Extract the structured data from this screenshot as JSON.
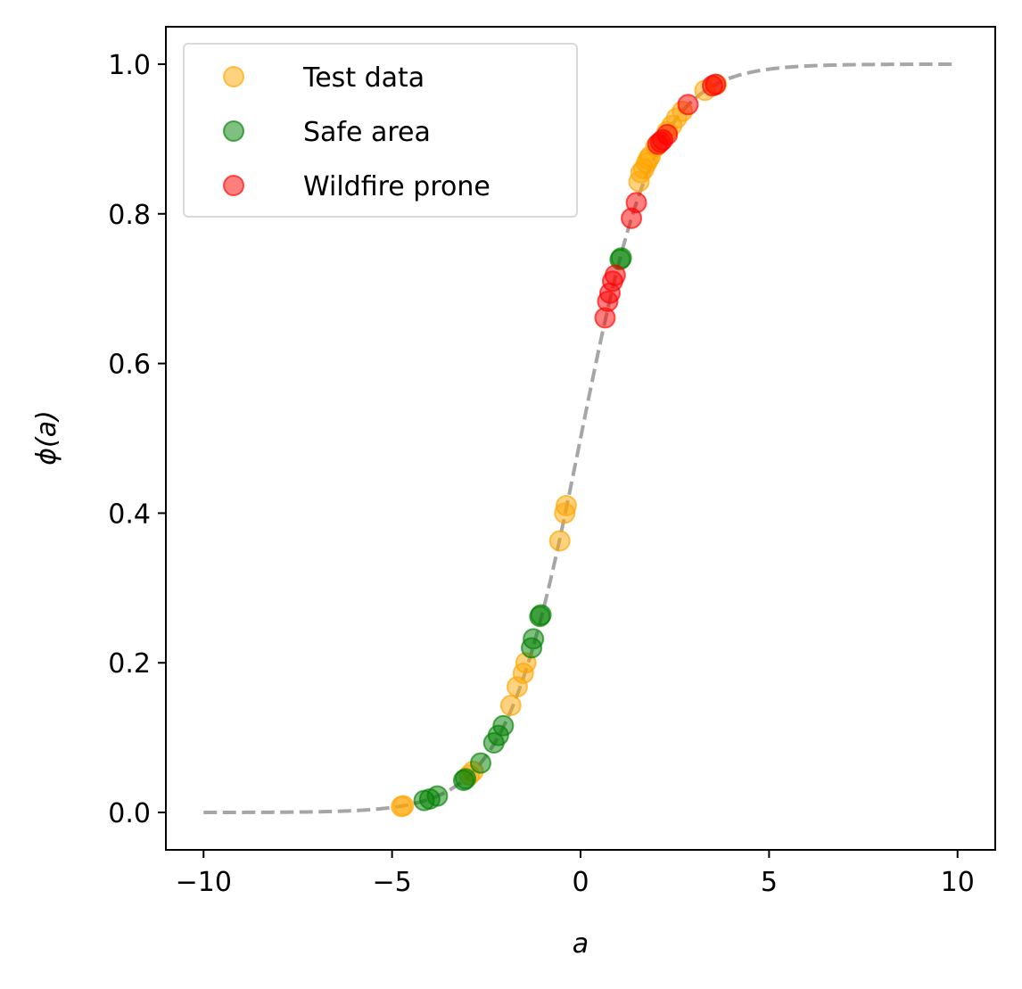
{
  "chart_data": {
    "type": "scatter",
    "title": "",
    "xlabel": "a",
    "ylabel": "ϕ(a)",
    "xlim": [
      -11,
      11
    ],
    "ylim": [
      -0.05,
      1.05
    ],
    "x_ticks": [
      -10,
      -5,
      0,
      5,
      10
    ],
    "x_tick_labels": [
      "−10",
      "−5",
      "0",
      "5",
      "10"
    ],
    "y_ticks": [
      0.0,
      0.2,
      0.4,
      0.6,
      0.8,
      1.0
    ],
    "y_tick_labels": [
      "0.0",
      "0.2",
      "0.4",
      "0.6",
      "0.8",
      "1.0"
    ],
    "grid": false,
    "legend_position": "upper-left",
    "curve": {
      "function": "sigmoid",
      "x_range": [
        -10,
        10
      ],
      "style": "dashed",
      "color": "#a6a6a6"
    },
    "series": [
      {
        "name": "Test data",
        "color": "#ffa500",
        "alpha": 0.5,
        "x": [
          -4.75,
          -4.7,
          -2.85,
          -2.95,
          -1.85,
          -1.68,
          -1.52,
          -1.45,
          -0.55,
          -0.42,
          -0.38,
          1.55,
          1.6,
          1.68,
          1.75,
          1.8,
          1.85,
          2.0,
          2.3,
          2.42,
          2.55,
          2.7,
          3.3,
          3.6
        ],
        "y": [
          0.008,
          0.009,
          0.055,
          0.05,
          0.143,
          0.168,
          0.186,
          0.2,
          0.363,
          0.4,
          0.41,
          0.843,
          0.855,
          0.86,
          0.868,
          0.873,
          0.877,
          0.89,
          0.91,
          0.918,
          0.928,
          0.937,
          0.965,
          0.973
        ]
      },
      {
        "name": "Safe area",
        "color": "#008000",
        "alpha": 0.5,
        "x": [
          -4.15,
          -4.0,
          -3.8,
          -3.1,
          -3.05,
          -2.65,
          -2.3,
          -2.18,
          -2.05,
          -1.3,
          -1.25,
          -1.08,
          -1.05,
          1.05,
          1.08
        ],
        "y": [
          0.016,
          0.018,
          0.022,
          0.043,
          0.045,
          0.066,
          0.093,
          0.103,
          0.116,
          0.22,
          0.232,
          0.262,
          0.264,
          0.739,
          0.741
        ]
      },
      {
        "name": "Wildfire prone",
        "color": "#ff0000",
        "alpha": 0.5,
        "x": [
          0.65,
          0.72,
          0.78,
          0.85,
          0.92,
          1.35,
          1.48,
          2.05,
          2.12,
          2.18,
          2.3,
          2.85,
          3.5,
          3.58
        ],
        "y": [
          0.661,
          0.683,
          0.694,
          0.71,
          0.718,
          0.794,
          0.815,
          0.893,
          0.896,
          0.899,
          0.906,
          0.946,
          0.971,
          0.973
        ]
      }
    ]
  }
}
